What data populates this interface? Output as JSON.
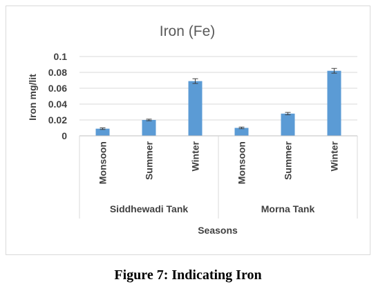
{
  "caption": "Figure 7: Indicating Iron",
  "chart_data": {
    "type": "bar",
    "title": "Iron (Fe)",
    "xlabel": "Seasons",
    "ylabel": "Iron mg/lit",
    "ylim": [
      0,
      0.1
    ],
    "yticks": [
      0,
      0.02,
      0.04,
      0.06,
      0.08,
      0.1
    ],
    "ytick_labels": [
      "0",
      "0.02",
      "0.04",
      "0.06",
      "0.08",
      "0.1"
    ],
    "grid": true,
    "bar_color": "#5b9bd5",
    "groups": [
      {
        "name": "Siddhewadi Tank",
        "categories": [
          "Monsoon",
          "Summer",
          "Winter"
        ],
        "values": [
          0.009,
          0.02,
          0.069
        ],
        "errors": [
          0.001,
          0.001,
          0.003
        ]
      },
      {
        "name": "Morna Tank",
        "categories": [
          "Monsoon",
          "Summer",
          "Winter"
        ],
        "values": [
          0.01,
          0.028,
          0.082
        ],
        "errors": [
          0.001,
          0.0015,
          0.003
        ]
      }
    ]
  }
}
